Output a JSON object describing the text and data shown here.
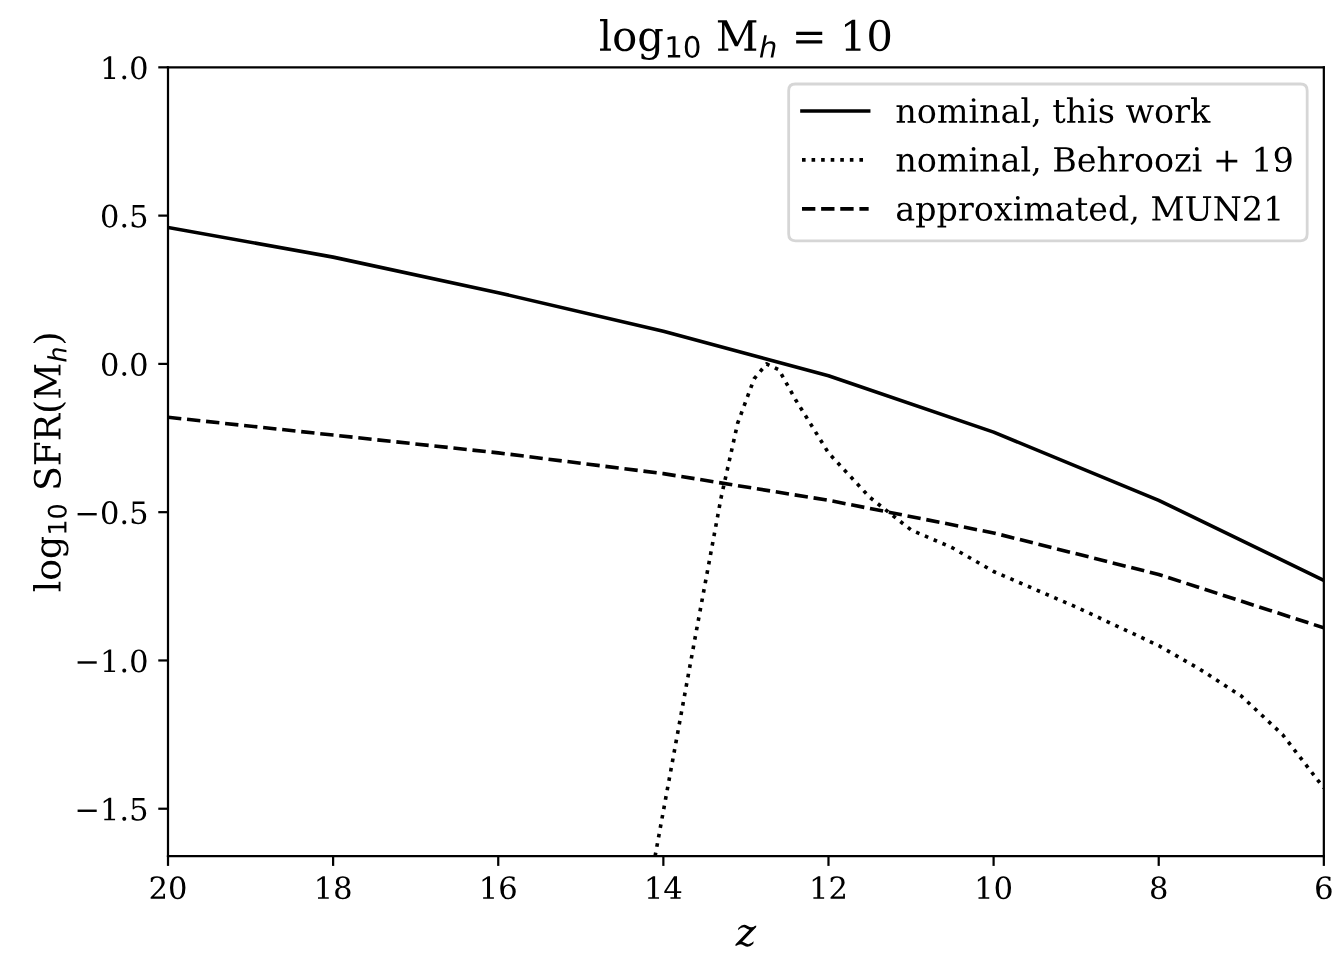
{
  "chart_data": {
    "type": "line",
    "title": "log$_{10}$ M$_{h}$ = 10",
    "xlabel": "z",
    "ylabel": "log$_{10}$ SFR(M$_{h}$)",
    "xlim": [
      20,
      6
    ],
    "xticks": [
      20,
      18,
      16,
      14,
      12,
      10,
      8,
      6
    ],
    "ylim": [
      -1.66,
      1.0
    ],
    "yticks": [
      {
        "value": -1.5,
        "label": "−1.5"
      },
      {
        "value": -1.0,
        "label": "−1.0"
      },
      {
        "value": -0.5,
        "label": "−0.5"
      },
      {
        "value": 0.0,
        "label": "0.0"
      },
      {
        "value": 0.5,
        "label": "0.5"
      },
      {
        "value": 1.0,
        "label": "1.0"
      }
    ],
    "grid": false,
    "legend": "top right",
    "marker": "none",
    "series": [
      {
        "name": "nominal, this work",
        "color": "#000000",
        "line_style": "solid",
        "x": [
          20,
          18,
          16,
          14,
          12,
          10,
          8,
          6
        ],
        "values": [
          0.46,
          0.36,
          0.24,
          0.11,
          -0.04,
          -0.23,
          -0.46,
          -0.73
        ]
      },
      {
        "name": "nominal, Behroozi + 19",
        "color": "#000000",
        "line_style": "dotted",
        "x": [
          14.1,
          13.6,
          13.3,
          13.1,
          12.9,
          12.75,
          12.6,
          12.4,
          12,
          11.5,
          11,
          10.5,
          10,
          9,
          8,
          7.5,
          7,
          6.5,
          6
        ],
        "values": [
          -1.66,
          -0.9,
          -0.45,
          -0.2,
          -0.05,
          0.0,
          -0.02,
          -0.12,
          -0.3,
          -0.45,
          -0.56,
          -0.62,
          -0.7,
          -0.82,
          -0.95,
          -1.03,
          -1.12,
          -1.25,
          -1.43
        ]
      },
      {
        "name": "approximated, MUN21",
        "color": "#000000",
        "line_style": "dashed",
        "x": [
          20,
          18,
          16,
          14,
          12,
          10,
          8,
          6
        ],
        "values": [
          -0.18,
          -0.24,
          -0.3,
          -0.37,
          -0.46,
          -0.57,
          -0.71,
          -0.89
        ]
      }
    ]
  }
}
